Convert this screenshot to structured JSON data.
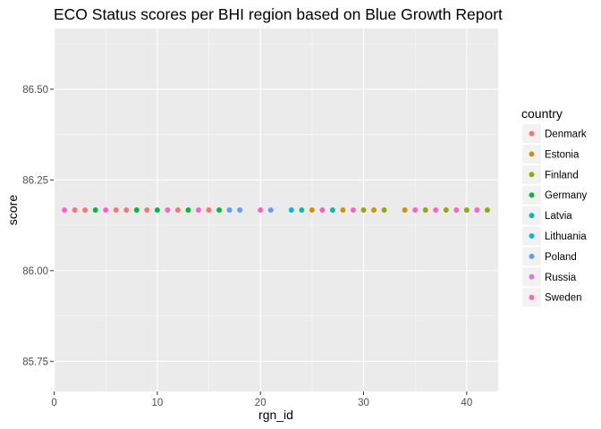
{
  "chart_data": {
    "type": "scatter",
    "title": "ECO Status scores per BHI region based on Blue Growth Report",
    "xlabel": "rgn_id",
    "ylabel": "score",
    "xlim": [
      -0.05,
      43.05
    ],
    "ylim": [
      85.667,
      86.667
    ],
    "x_ticks": [
      0,
      10,
      20,
      30,
      40
    ],
    "x_tick_labels": [
      "0",
      "10",
      "20",
      "30",
      "40"
    ],
    "y_ticks": [
      85.75,
      86.0,
      86.25,
      86.5
    ],
    "y_tick_labels": [
      "85.75",
      "86.00",
      "86.25",
      "86.50"
    ],
    "grid": true,
    "legend": {
      "title": "country",
      "placement": "right",
      "entries": [
        {
          "name": "Denmark",
          "color": "#F8766D"
        },
        {
          "name": "Estonia",
          "color": "#D39200"
        },
        {
          "name": "Finland",
          "color": "#93AA00"
        },
        {
          "name": "Germany",
          "color": "#00BA38"
        },
        {
          "name": "Latvia",
          "color": "#00C19F"
        },
        {
          "name": "Lithuania",
          "color": "#00B9E3"
        },
        {
          "name": "Poland",
          "color": "#619CFF"
        },
        {
          "name": "Russia",
          "color": "#DB72FB"
        },
        {
          "name": "Sweden",
          "color": "#FF61C3"
        }
      ]
    },
    "points": [
      {
        "x": 1,
        "y": 86.167,
        "country": "Sweden"
      },
      {
        "x": 2,
        "y": 86.167,
        "country": "Denmark"
      },
      {
        "x": 3,
        "y": 86.167,
        "country": "Denmark"
      },
      {
        "x": 4,
        "y": 86.167,
        "country": "Germany"
      },
      {
        "x": 5,
        "y": 86.167,
        "country": "Sweden"
      },
      {
        "x": 6,
        "y": 86.167,
        "country": "Denmark"
      },
      {
        "x": 7,
        "y": 86.167,
        "country": "Denmark"
      },
      {
        "x": 8,
        "y": 86.167,
        "country": "Germany"
      },
      {
        "x": 9,
        "y": 86.167,
        "country": "Denmark"
      },
      {
        "x": 10,
        "y": 86.167,
        "country": "Germany"
      },
      {
        "x": 11,
        "y": 86.167,
        "country": "Sweden"
      },
      {
        "x": 12,
        "y": 86.167,
        "country": "Denmark"
      },
      {
        "x": 13,
        "y": 86.167,
        "country": "Germany"
      },
      {
        "x": 14,
        "y": 86.167,
        "country": "Sweden"
      },
      {
        "x": 15,
        "y": 86.167,
        "country": "Denmark"
      },
      {
        "x": 16,
        "y": 86.167,
        "country": "Germany"
      },
      {
        "x": 17,
        "y": 86.167,
        "country": "Poland"
      },
      {
        "x": 18,
        "y": 86.167,
        "country": "Poland"
      },
      {
        "x": 20,
        "y": 86.167,
        "country": "Sweden"
      },
      {
        "x": 21,
        "y": 86.167,
        "country": "Poland"
      },
      {
        "x": 23,
        "y": 86.167,
        "country": "Lithuania"
      },
      {
        "x": 24,
        "y": 86.167,
        "country": "Latvia"
      },
      {
        "x": 25,
        "y": 86.167,
        "country": "Estonia"
      },
      {
        "x": 26,
        "y": 86.167,
        "country": "Sweden"
      },
      {
        "x": 27,
        "y": 86.167,
        "country": "Latvia"
      },
      {
        "x": 28,
        "y": 86.167,
        "country": "Estonia"
      },
      {
        "x": 29,
        "y": 86.167,
        "country": "Sweden"
      },
      {
        "x": 30,
        "y": 86.167,
        "country": "Finland"
      },
      {
        "x": 31,
        "y": 86.167,
        "country": "Estonia"
      },
      {
        "x": 32,
        "y": 86.167,
        "country": "Finland"
      },
      {
        "x": 34,
        "y": 86.167,
        "country": "Estonia"
      },
      {
        "x": 35,
        "y": 86.167,
        "country": "Sweden"
      },
      {
        "x": 36,
        "y": 86.167,
        "country": "Finland"
      },
      {
        "x": 37,
        "y": 86.167,
        "country": "Sweden"
      },
      {
        "x": 38,
        "y": 86.167,
        "country": "Finland"
      },
      {
        "x": 39,
        "y": 86.167,
        "country": "Sweden"
      },
      {
        "x": 40,
        "y": 86.167,
        "country": "Finland"
      },
      {
        "x": 41,
        "y": 86.167,
        "country": "Sweden"
      },
      {
        "x": 42,
        "y": 86.167,
        "country": "Finland"
      }
    ]
  },
  "colors": {
    "panel_background": "#EBEBEB",
    "grid_major": "#FFFFFF",
    "legend_key_background": "#F2F2F2"
  }
}
